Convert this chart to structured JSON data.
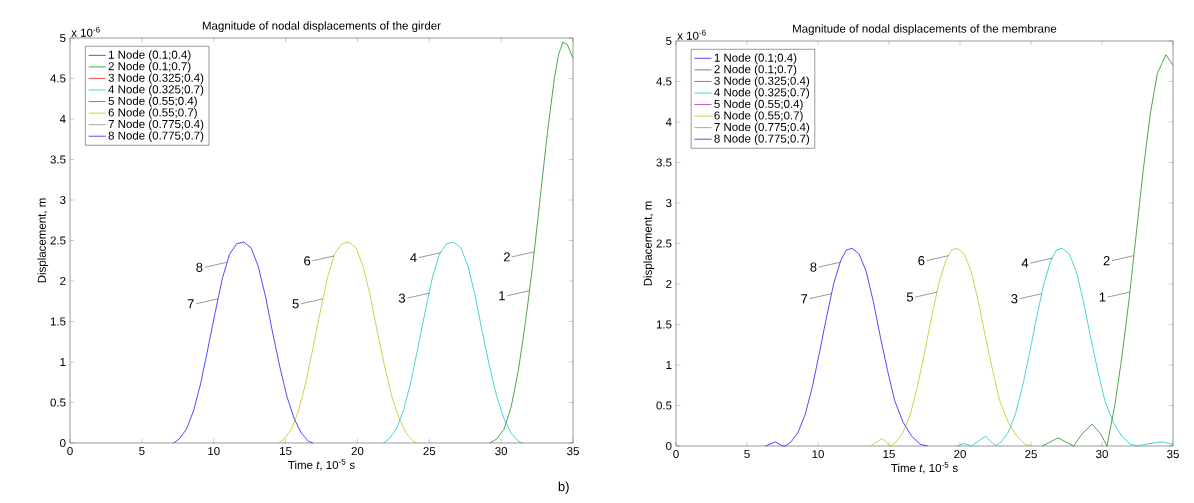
{
  "chart_data": [
    {
      "type": "line",
      "title": "Magnitude of nodal displacements of the girder",
      "xlabel": "Time *t*, 10$^{-5}$ s",
      "ylabel": "Displacement, m",
      "xlim": [
        0,
        35
      ],
      "ylim": [
        0,
        5
      ],
      "xticks": [
        0,
        5,
        10,
        15,
        20,
        25,
        30,
        35
      ],
      "yticks": [
        0,
        0.5,
        1,
        1.5,
        2,
        2.5,
        3,
        3.5,
        4,
        4.5,
        5
      ],
      "grid": false,
      "legend": "top left",
      "marker": "none",
      "line_style": "solid",
      "annotations": [
        "x 10$^{-6}$",
        {
          "text": "8",
          "x": 10.9,
          "y": 2.23
        },
        {
          "text": "7",
          "x": 10.3,
          "y": 1.78
        },
        {
          "text": "6",
          "x": 18.4,
          "y": 2.31
        },
        {
          "text": "5",
          "x": 17.6,
          "y": 1.78
        },
        {
          "text": "4",
          "x": 25.8,
          "y": 2.35
        },
        {
          "text": "3",
          "x": 25.0,
          "y": 1.85
        },
        {
          "text": "2",
          "x": 32.3,
          "y": 2.36
        },
        {
          "text": "1",
          "x": 31.95,
          "y": 1.88
        }
      ],
      "series": [
        {
          "name": "1 Node (0.1;0.4)",
          "color": "#0000ff"
        },
        {
          "name": "2 Node (0.1;0.7)",
          "color": "#008000",
          "x": [
            29.2,
            29.7,
            30.2,
            30.7,
            31.2,
            31.7,
            32.2,
            32.7,
            33.2,
            33.7,
            34.0,
            34.3,
            34.6,
            35
          ],
          "values": [
            0,
            0.05,
            0.17,
            0.45,
            0.9,
            1.5,
            2.2,
            3.0,
            3.8,
            4.5,
            4.8,
            4.95,
            4.92,
            4.75
          ]
        },
        {
          "name": "3 Node (0.325;0.4)",
          "color": "#ff0000"
        },
        {
          "name": "4 Node (0.325;0.7)",
          "color": "#00bfbf",
          "x": [
            21.8,
            22.2,
            22.7,
            23.2,
            23.7,
            24.2,
            24.7,
            25.2,
            25.7,
            26.2,
            26.7,
            27.2,
            27.7,
            28.2,
            28.7,
            29.2,
            29.7,
            30.2,
            30.7,
            31.2,
            31.5
          ],
          "values": [
            0,
            0.05,
            0.17,
            0.4,
            0.74,
            1.17,
            1.61,
            2.03,
            2.33,
            2.46,
            2.48,
            2.41,
            2.18,
            1.81,
            1.36,
            0.94,
            0.57,
            0.3,
            0.12,
            0.02,
            0
          ]
        },
        {
          "name": "5 Node (0.55;0.4)",
          "color": "#bf00bf"
        },
        {
          "name": "6 Node (0.55;0.7)",
          "color": "#bfbf00",
          "x": [
            14.5,
            14.9,
            15.4,
            15.9,
            16.4,
            16.9,
            17.4,
            17.9,
            18.4,
            18.9,
            19.4,
            19.9,
            20.4,
            20.9,
            21.4,
            21.9,
            22.4,
            22.9,
            23.4,
            23.9,
            24.2
          ],
          "values": [
            0,
            0.05,
            0.17,
            0.4,
            0.74,
            1.17,
            1.61,
            2.03,
            2.33,
            2.46,
            2.48,
            2.41,
            2.18,
            1.81,
            1.36,
            0.94,
            0.57,
            0.3,
            0.12,
            0.02,
            0
          ]
        },
        {
          "name": "7 Node (0.775;0.4)",
          "color": "#808080"
        },
        {
          "name": "8 Node (0.775;0.7)",
          "color": "#0000ff",
          "x": [
            7.2,
            7.6,
            8.1,
            8.6,
            9.1,
            9.6,
            10.1,
            10.6,
            11.1,
            11.6,
            12.1,
            12.6,
            13.1,
            13.6,
            14.1,
            14.6,
            15.1,
            15.6,
            16.1,
            16.6,
            16.9
          ],
          "values": [
            0,
            0.05,
            0.17,
            0.4,
            0.74,
            1.17,
            1.61,
            2.03,
            2.33,
            2.46,
            2.48,
            2.41,
            2.18,
            1.81,
            1.36,
            0.94,
            0.57,
            0.3,
            0.12,
            0.02,
            0
          ]
        }
      ]
    },
    {
      "type": "line",
      "title": "Magnitude of nodal displacements of the membrane",
      "xlabel": "Time *t*, 10$^{-5}$ s",
      "ylabel": "Displacement, m",
      "xlim": [
        0,
        35
      ],
      "ylim": [
        0,
        5
      ],
      "xticks": [
        0,
        5,
        10,
        15,
        20,
        25,
        30,
        35
      ],
      "yticks": [
        0,
        0.5,
        1,
        1.5,
        2,
        2.5,
        3,
        3.5,
        4,
        4.5,
        5
      ],
      "grid": false,
      "legend": "top left",
      "marker": "none",
      "line_style": "solid",
      "annotations": [
        "x 10$^{-6}$",
        "b)",
        {
          "text": "8",
          "x": 11.6,
          "y": 2.27
        },
        {
          "text": "7",
          "x": 10.95,
          "y": 1.88
        },
        {
          "text": "6",
          "x": 19.2,
          "y": 2.35
        },
        {
          "text": "5",
          "x": 18.4,
          "y": 1.9
        },
        {
          "text": "4",
          "x": 26.5,
          "y": 2.32
        },
        {
          "text": "3",
          "x": 25.75,
          "y": 1.88
        },
        {
          "text": "2",
          "x": 32.25,
          "y": 2.35
        },
        {
          "text": "1",
          "x": 31.95,
          "y": 1.9
        }
      ],
      "series": [
        {
          "name": "1 Node (0.1;0.4)",
          "color": "#0000ff"
        },
        {
          "name": "2 Node (0.1;0.7)",
          "color": "#008000",
          "x": [
            25.8,
            26.9,
            28.0,
            28.6,
            29.3,
            29.9,
            30.35,
            30.9,
            31.4,
            31.9,
            32.4,
            32.9,
            33.4,
            33.9,
            34.5,
            35
          ],
          "values": [
            0,
            0.1,
            0,
            0.15,
            0.27,
            0.15,
            0,
            0.5,
            1.1,
            1.8,
            2.6,
            3.4,
            4.1,
            4.6,
            4.83,
            4.7
          ]
        },
        {
          "name": "3 Node (0.325;0.4)",
          "color": "#ff0000"
        },
        {
          "name": "4 Node (0.325;0.7)",
          "color": "#00bfbf",
          "x": [
            19.8,
            20.3,
            20.8,
            21.8,
            22.5,
            22.9,
            23.4,
            23.9,
            24.4,
            24.9,
            25.4,
            25.9,
            26.4,
            26.8,
            27.2,
            27.7,
            28.2,
            28.7,
            29.2,
            29.7,
            30.2,
            30.8,
            31.4,
            32.0,
            32.5,
            33.3,
            34.3,
            35
          ],
          "values": [
            0,
            0.03,
            0,
            0.12,
            0,
            0.05,
            0.17,
            0.39,
            0.73,
            1.15,
            1.59,
            2.0,
            2.29,
            2.42,
            2.44,
            2.37,
            2.15,
            1.78,
            1.34,
            0.93,
            0.56,
            0.29,
            0.12,
            0.02,
            0,
            0.03,
            0.05,
            0.02
          ]
        },
        {
          "name": "5 Node (0.55;0.4)",
          "color": "#bf00bf"
        },
        {
          "name": "6 Node (0.55;0.7)",
          "color": "#bfbf00",
          "x": [
            13.7,
            14.5,
            15.1,
            15.5,
            16.0,
            16.5,
            17.0,
            17.5,
            18.0,
            18.5,
            19.0,
            19.4,
            19.8,
            20.3,
            20.8,
            21.3,
            21.8,
            22.3,
            22.8,
            23.4,
            24.0,
            24.6,
            25.1
          ],
          "values": [
            0,
            0.09,
            0,
            0.05,
            0.17,
            0.39,
            0.73,
            1.15,
            1.59,
            2.0,
            2.29,
            2.42,
            2.44,
            2.37,
            2.15,
            1.78,
            1.34,
            0.93,
            0.56,
            0.29,
            0.12,
            0.02,
            0
          ]
        },
        {
          "name": "7 Node (0.775;0.4)",
          "color": "#808080"
        },
        {
          "name": "8 Node (0.775;0.7)",
          "color": "#0000ff",
          "x": [
            6.3,
            7.0,
            7.5,
            7.7,
            8.1,
            8.6,
            9.1,
            9.6,
            10.1,
            10.6,
            11.1,
            11.6,
            12.0,
            12.4,
            12.9,
            13.4,
            13.9,
            14.4,
            14.9,
            15.4,
            16.0,
            16.6,
            17.2,
            17.7
          ],
          "values": [
            0,
            0.05,
            0,
            0,
            0.05,
            0.17,
            0.39,
            0.73,
            1.15,
            1.59,
            2.0,
            2.29,
            2.42,
            2.44,
            2.37,
            2.15,
            1.78,
            1.34,
            0.93,
            0.56,
            0.29,
            0.12,
            0.02,
            0
          ]
        }
      ]
    }
  ]
}
